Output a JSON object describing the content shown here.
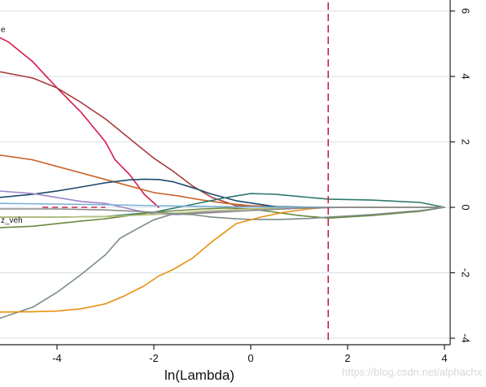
{
  "chart_data": {
    "type": "line",
    "title": "",
    "xlabel": "ln(Lambda)",
    "ylabel": "",
    "xlim": [
      -5.2,
      4.1
    ],
    "ylim": [
      -4.2,
      6.2
    ],
    "x_ticks": [
      -4,
      -2,
      0,
      2,
      4
    ],
    "x_tick_labels": [
      "-4",
      "-2",
      "0",
      "2",
      "4"
    ],
    "y_ticks": [
      -4,
      -2,
      0,
      2,
      4,
      6
    ],
    "y_tick_labels": [
      "-4",
      "-2",
      "0",
      "2",
      "4",
      "6"
    ],
    "y_axis_side": "right",
    "grid": "horizontal",
    "grid_color": "#d9dee6",
    "reference_line": {
      "x": 1.6,
      "color": "#c0254a",
      "style": "dashed"
    },
    "zero_line": {
      "y": 0,
      "x_range": [
        -4.3,
        -3.0
      ],
      "color": "#c0254a",
      "style": "dashed"
    },
    "series": [
      {
        "label": "e",
        "color": "#d61a4a",
        "x": [
          -5.2,
          -5.0,
          -4.5,
          -4.0,
          -3.5,
          -3.0,
          -2.8,
          -2.5,
          -2.2,
          -1.9
        ],
        "y": [
          5.2,
          5.05,
          4.45,
          3.65,
          2.9,
          2.0,
          1.45,
          1.0,
          0.4,
          0.0
        ]
      },
      {
        "label": "",
        "color": "#a83c3c",
        "x": [
          -5.2,
          -4.5,
          -4.0,
          -3.5,
          -3.0,
          -2.5,
          -2.0,
          -1.6,
          -1.2,
          -0.8,
          -0.3,
          0.5,
          1.6,
          2.5,
          4.0
        ],
        "y": [
          4.15,
          3.95,
          3.65,
          3.2,
          2.7,
          2.1,
          1.5,
          1.1,
          0.65,
          0.3,
          0.05,
          0.0,
          0.0,
          0.0,
          0.0
        ]
      },
      {
        "label": "",
        "color": "#c8652a",
        "x": [
          -5.2,
          -4.5,
          -4.0,
          -3.5,
          -3.0,
          -2.5,
          -2.0,
          -1.5,
          -1.0,
          -0.5,
          0.0,
          1.0,
          2.0,
          4.0
        ],
        "y": [
          1.6,
          1.45,
          1.25,
          1.05,
          0.85,
          0.65,
          0.45,
          0.35,
          0.22,
          0.12,
          0.05,
          0.0,
          0.0,
          0.0
        ]
      },
      {
        "label": "",
        "color": "#1e4a6e",
        "x": [
          -5.2,
          -4.5,
          -4.0,
          -3.5,
          -3.0,
          -2.5,
          -2.2,
          -1.9,
          -1.6,
          -1.2,
          -0.8,
          -0.3,
          0.5,
          1.6,
          4.0
        ],
        "y": [
          0.3,
          0.4,
          0.5,
          0.62,
          0.75,
          0.84,
          0.86,
          0.85,
          0.78,
          0.6,
          0.4,
          0.2,
          0.02,
          0.0,
          0.0
        ]
      },
      {
        "label": "",
        "color": "#2f7a6e",
        "x": [
          -5.2,
          -4.0,
          -3.0,
          -2.0,
          -1.5,
          -1.0,
          -0.5,
          0.0,
          0.5,
          1.0,
          1.6,
          2.5,
          3.5,
          4.0
        ],
        "y": [
          -0.3,
          -0.3,
          -0.28,
          -0.15,
          0.0,
          0.15,
          0.3,
          0.42,
          0.4,
          0.33,
          0.25,
          0.22,
          0.15,
          0.0
        ]
      },
      {
        "label": "",
        "color": "#9b86c8",
        "x": [
          -5.2,
          -4.5,
          -4.0,
          -3.5,
          -3.0,
          -2.5,
          -2.0,
          -1.5,
          -1.0,
          0.0,
          1.6,
          4.0
        ],
        "y": [
          0.5,
          0.42,
          0.3,
          0.18,
          0.12,
          -0.05,
          -0.2,
          -0.22,
          -0.15,
          -0.05,
          0.0,
          0.0
        ]
      },
      {
        "label": "z_veh",
        "color": "#6b8a3a",
        "x": [
          -5.2,
          -4.5,
          -4.0,
          -3.5,
          -3.0,
          -2.5,
          -2.0,
          -1.5,
          -1.0,
          -0.5,
          0.0,
          0.5,
          1.0,
          1.6,
          2.5,
          3.5,
          4.0
        ],
        "y": [
          -0.62,
          -0.58,
          -0.5,
          -0.42,
          -0.35,
          -0.25,
          -0.15,
          -0.1,
          -0.05,
          -0.02,
          -0.05,
          -0.15,
          -0.25,
          -0.33,
          -0.25,
          -0.12,
          0.0
        ]
      },
      {
        "label": "",
        "color": "#b8c27a",
        "x": [
          -5.2,
          -4.0,
          -3.0,
          -2.0,
          -1.0,
          0.0,
          1.0,
          2.0,
          4.0
        ],
        "y": [
          -0.3,
          -0.3,
          -0.28,
          -0.22,
          -0.12,
          -0.05,
          0.0,
          0.0,
          0.0
        ]
      },
      {
        "label": "",
        "color": "#7a8c86",
        "x": [
          -5.2,
          -4.5,
          -4.0,
          -3.5,
          -3.0,
          -2.7,
          -2.4,
          -2.0,
          -1.6,
          -1.2,
          -0.8,
          -0.3,
          0.0,
          0.6,
          1.2,
          1.6,
          2.5,
          3.5,
          4.0
        ],
        "y": [
          -3.4,
          -3.05,
          -2.6,
          -2.05,
          -1.45,
          -0.95,
          -0.7,
          -0.38,
          -0.2,
          -0.22,
          -0.3,
          -0.35,
          -0.37,
          -0.37,
          -0.34,
          -0.3,
          -0.22,
          -0.1,
          0.0
        ]
      },
      {
        "label": "",
        "color": "#e8900e",
        "x": [
          -5.2,
          -4.5,
          -4.0,
          -3.5,
          -3.0,
          -2.6,
          -2.2,
          -1.9,
          -1.6,
          -1.2,
          -0.8,
          -0.3,
          0.2,
          0.7,
          1.2,
          1.6,
          2.5,
          4.0
        ],
        "y": [
          -3.2,
          -3.19,
          -3.17,
          -3.1,
          -2.95,
          -2.7,
          -2.4,
          -2.1,
          -1.9,
          -1.55,
          -1.05,
          -0.5,
          -0.3,
          -0.15,
          -0.05,
          0.0,
          0.0,
          0.0
        ]
      },
      {
        "label": "",
        "color": "#7ab0d8",
        "x": [
          -5.2,
          -4.0,
          -3.0,
          -2.0,
          -1.0,
          0.0,
          1.0,
          2.0,
          4.0
        ],
        "y": [
          0.12,
          0.1,
          0.08,
          0.05,
          0.03,
          0.01,
          0.0,
          0.0,
          0.0
        ]
      },
      {
        "label": "",
        "color": "#8a8a8a",
        "x": [
          -5.2,
          -4.0,
          -3.0,
          -2.0,
          -1.5,
          -1.0,
          0.0,
          1.0,
          2.0,
          4.0
        ],
        "y": [
          -0.05,
          -0.05,
          -0.08,
          -0.15,
          -0.2,
          -0.18,
          -0.1,
          -0.03,
          0.0,
          0.0
        ]
      }
    ]
  },
  "watermark": "https://blog.csdn.net/alphachx"
}
